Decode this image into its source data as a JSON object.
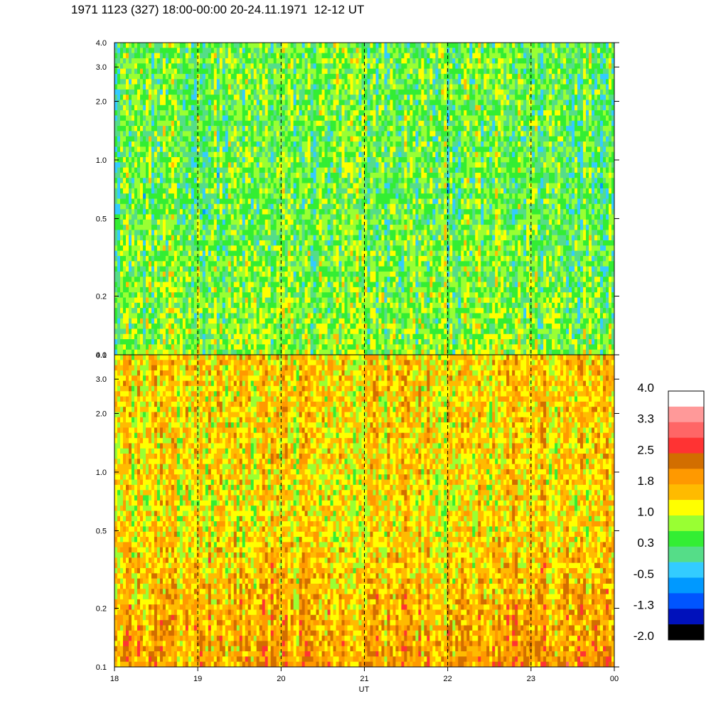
{
  "header": {
    "title": "1971 1123 (327) 18:00-00:00 20-24.11.1971  12-12 UT"
  },
  "chart_data": [
    {
      "type": "heatmap",
      "panel": "top",
      "title": "",
      "xlabel": "",
      "ylabel": "",
      "x_ticks": [
        "18",
        "19",
        "20",
        "21",
        "22",
        "23",
        "00"
      ],
      "y_ticks": [
        "0.1",
        "0.2",
        "0.5",
        "1.0",
        "2.0",
        "3.0",
        "4.0"
      ],
      "ylim": [
        0.1,
        4.0
      ],
      "yscale": "log",
      "xlim": [
        18,
        24
      ],
      "dashed_hour_lines": [
        19,
        20,
        21,
        22,
        23
      ],
      "level_profile": {
        "low_freq": 0.7,
        "mid_freq": 0.45,
        "high_freq": 0.55
      }
    },
    {
      "type": "heatmap",
      "panel": "bottom",
      "title": "",
      "xlabel": "UT",
      "ylabel": "",
      "x_ticks": [
        "18",
        "19",
        "20",
        "21",
        "22",
        "23",
        "00"
      ],
      "y_ticks": [
        "0.1",
        "0.2",
        "0.5",
        "1.0",
        "2.0",
        "3.0",
        "4.0"
      ],
      "ylim": [
        0.1,
        4.0
      ],
      "yscale": "log",
      "xlim": [
        18,
        24
      ],
      "dashed_hour_lines": [
        19,
        20,
        21,
        22,
        23
      ],
      "level_profile": {
        "low_freq": 1.9,
        "mid_freq": 1.3,
        "high_freq": 1.5
      }
    }
  ],
  "colorbar": {
    "labels": [
      "4.0",
      "3.3",
      "2.5",
      "1.8",
      "1.0",
      "0.3",
      "-0.5",
      "-1.3",
      "-2.0"
    ],
    "colors_top_to_bottom": [
      "#ffffff",
      "#ff9999",
      "#ff6666",
      "#ff3333",
      "#d26e00",
      "#ff9900",
      "#ffbb00",
      "#ffff00",
      "#99ff33",
      "#33ee33",
      "#55dd88",
      "#33ccff",
      "#0099ff",
      "#0055ff",
      "#0011bb",
      "#000000"
    ],
    "range": [
      -2.0,
      4.0
    ]
  }
}
